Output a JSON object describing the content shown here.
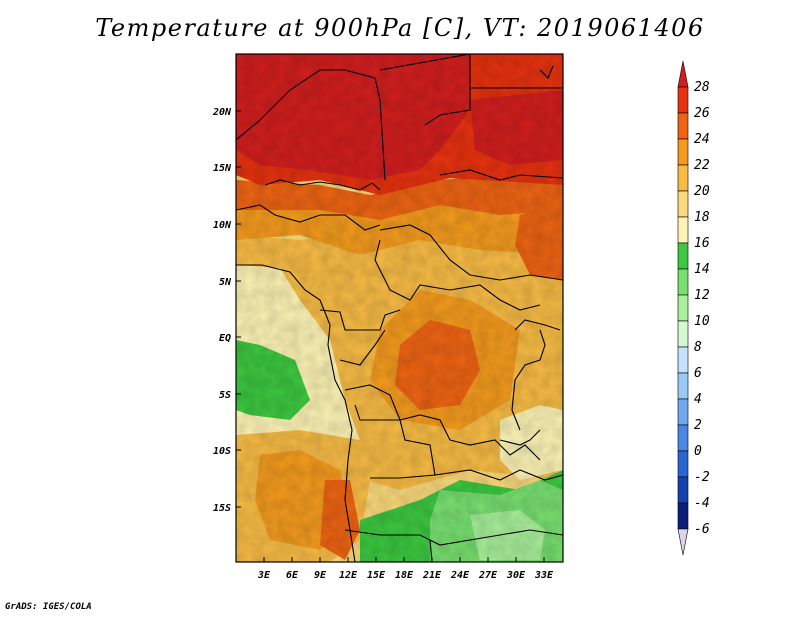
{
  "title": "Temperature at 900hPa [C], VT: 2019061406",
  "credit": "GrADS: IGES/COLA",
  "map": {
    "lat_labels": [
      "20N",
      "15N",
      "10N",
      "5N",
      "EQ",
      "5S",
      "10S",
      "15S"
    ],
    "lon_labels": [
      "3E",
      "6E",
      "9E",
      "12E",
      "15E",
      "18E",
      "21E",
      "24E",
      "27E",
      "30E",
      "33E"
    ]
  },
  "colorbar": {
    "labels": [
      "28",
      "26",
      "24",
      "22",
      "20",
      "18",
      "16",
      "14",
      "12",
      "10",
      "8",
      "6",
      "4",
      "2",
      "0",
      "-2",
      "-4",
      "-6"
    ],
    "colors": [
      "#d21e1e",
      "#e6320f",
      "#ee6413",
      "#f49b1e",
      "#f8bc45",
      "#fbd97c",
      "#fdf4b5",
      "#3cc840",
      "#78e070",
      "#a8f09a",
      "#d4f8d0",
      "#c6e2ff",
      "#9ccaf6",
      "#6fa9ee",
      "#4a88e3",
      "#2a65d4",
      "#1443b0",
      "#0a1e7a",
      "#dad4ee"
    ]
  }
}
